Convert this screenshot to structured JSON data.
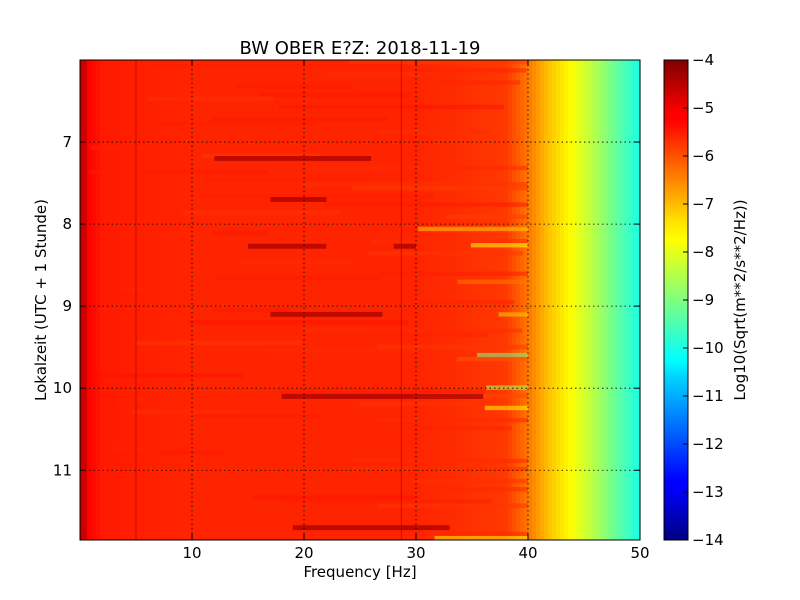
{
  "chart_data": {
    "type": "heatmap",
    "title": "BW OBER E?Z: 2018-11-19",
    "xlabel": "Frequency [Hz]",
    "ylabel": "Lokalzeit (UTC + 1 Stunde)",
    "colorbar_label": "Log10(Sqrt(m**2/s**2/Hz))",
    "colormap": "jet",
    "xlim": [
      0,
      50
    ],
    "ylim": [
      11.85,
      6.0
    ],
    "x_ticks": [
      10,
      20,
      30,
      40,
      50
    ],
    "x_tick_labels": [
      "10",
      "20",
      "30",
      "40",
      "50"
    ],
    "y_ticks": [
      7,
      8,
      9,
      10,
      11
    ],
    "y_tick_labels": [
      "7",
      "8",
      "9",
      "10",
      "11"
    ],
    "clim": [
      -14,
      -4
    ],
    "colorbar_ticks": [
      -4,
      -5,
      -6,
      -7,
      -8,
      -9,
      -10,
      -11,
      -12,
      -13,
      -14
    ],
    "colorbar_tick_labels": [
      "−4",
      "−5",
      "−6",
      "−7",
      "−8",
      "−9",
      "−10",
      "−11",
      "−12",
      "−13",
      "−14"
    ],
    "grid": true,
    "spectrum_profile": {
      "frequency_hz": [
        0,
        1,
        2,
        5,
        10,
        20,
        30,
        38,
        40,
        42,
        44,
        46,
        48,
        50
      ],
      "log10_value": [
        -5.1,
        -5.3,
        -5.5,
        -5.55,
        -5.6,
        -5.6,
        -5.6,
        -5.8,
        -6.4,
        -7.2,
        -7.8,
        -8.5,
        -9.3,
        -10.0
      ]
    },
    "dark_bands": [
      {
        "time": 7.2,
        "freq_range": [
          12,
          26
        ]
      },
      {
        "time": 7.7,
        "freq_range": [
          17,
          22
        ]
      },
      {
        "time": 8.27,
        "freq_range": [
          15,
          22
        ]
      },
      {
        "time": 8.27,
        "freq_range": [
          28,
          30
        ]
      },
      {
        "time": 9.1,
        "freq_range": [
          17,
          27
        ]
      },
      {
        "time": 10.1,
        "freq_range": [
          18,
          36
        ]
      },
      {
        "time": 11.7,
        "freq_range": [
          19,
          33
        ]
      }
    ],
    "dark_lines_hz": [
      5.0,
      28.7
    ]
  }
}
